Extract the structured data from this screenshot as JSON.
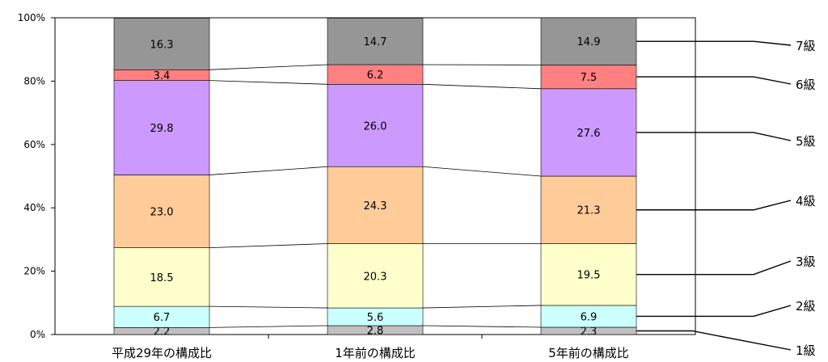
{
  "chart_data": {
    "type": "bar",
    "stacked": true,
    "percent_stacked": true,
    "title": "",
    "xlabel": "",
    "ylabel": "",
    "ylim": [
      0,
      100
    ],
    "y_ticks": [
      "0%",
      "20%",
      "40%",
      "60%",
      "80%",
      "100%"
    ],
    "grid": false,
    "legend_position": "right",
    "categories": [
      "平成29年の構成比",
      "1年前の構成比",
      "5年前の構成比"
    ],
    "series": [
      {
        "name": "1級",
        "color": "#c0c0c0",
        "values": [
          2.2,
          2.8,
          2.3
        ]
      },
      {
        "name": "2級",
        "color": "#ccffff",
        "values": [
          6.7,
          5.6,
          6.9
        ]
      },
      {
        "name": "3級",
        "color": "#ffffcc",
        "values": [
          18.5,
          20.3,
          19.5
        ]
      },
      {
        "name": "4級",
        "color": "#ffcc99",
        "values": [
          23.0,
          24.3,
          21.3
        ]
      },
      {
        "name": "5級",
        "color": "#cc99ff",
        "values": [
          29.8,
          26.0,
          27.6
        ]
      },
      {
        "name": "6級",
        "color": "#ff8080",
        "values": [
          3.4,
          6.2,
          7.5
        ]
      },
      {
        "name": "7級",
        "color": "#969696",
        "values": [
          16.3,
          14.7,
          14.9
        ]
      }
    ],
    "value_labels": [
      [
        "2.2",
        "6.7",
        "18.5",
        "23.0",
        "29.8",
        "3.4",
        "16.3"
      ],
      [
        "2.8",
        "5.6",
        "20.3",
        "24.3",
        "26.0",
        "6.2",
        "14.7"
      ],
      [
        "2.3",
        "6.9",
        "19.5",
        "21.3",
        "27.6",
        "7.5",
        "14.9"
      ]
    ]
  }
}
